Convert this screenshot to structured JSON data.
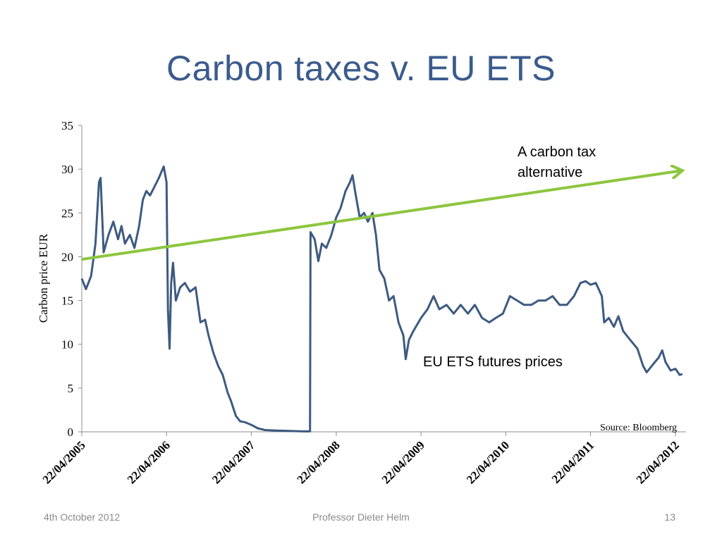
{
  "slide": {
    "title": "Carbon taxes v. EU ETS",
    "footer_left": "4th October 2012",
    "footer_center": "Professor Dieter Helm",
    "footer_right": "13"
  },
  "colors": {
    "title": "#3b5b8c",
    "series_ets": "#3d5a80",
    "series_tax": "#8cc63f",
    "axis": "#8c8c8c"
  },
  "chart_data": {
    "type": "line",
    "title": "",
    "xlabel": "",
    "ylabel": "Carbon price EUR",
    "ylim": [
      0,
      35
    ],
    "yticks": [
      0,
      5,
      10,
      15,
      20,
      25,
      30,
      35
    ],
    "xlim": [
      "2005-04-22",
      "2012-05-22"
    ],
    "xticks": [
      "2005-04-22",
      "2006-04-22",
      "2007-04-22",
      "2008-04-22",
      "2009-04-22",
      "2010-04-22",
      "2011-04-22",
      "2012-04-22"
    ],
    "xtick_labels": [
      "22/04/2005",
      "22/04/2006",
      "22/04/2007",
      "22/04/2008",
      "22/04/2009",
      "22/04/2010",
      "22/04/2011",
      "22/04/2012"
    ],
    "source": "Source: Bloomberg",
    "grid": false,
    "series": [
      {
        "name": "EU ETS futures prices",
        "label": "EU ETS futures prices",
        "color": "#3d5a80",
        "points": [
          [
            "2005-04-22",
            17.5
          ],
          [
            "2005-05-10",
            16.3
          ],
          [
            "2005-06-01",
            17.8
          ],
          [
            "2005-06-20",
            21.5
          ],
          [
            "2005-07-05",
            28.5
          ],
          [
            "2005-07-12",
            29.0
          ],
          [
            "2005-07-25",
            20.5
          ],
          [
            "2005-08-15",
            22.5
          ],
          [
            "2005-09-05",
            24.0
          ],
          [
            "2005-09-25",
            22.0
          ],
          [
            "2005-10-10",
            23.5
          ],
          [
            "2005-10-25",
            21.5
          ],
          [
            "2005-11-15",
            22.5
          ],
          [
            "2005-12-05",
            21.0
          ],
          [
            "2005-12-25",
            23.5
          ],
          [
            "2006-01-10",
            26.5
          ],
          [
            "2006-01-25",
            27.5
          ],
          [
            "2006-02-10",
            27.0
          ],
          [
            "2006-03-01",
            28.0
          ],
          [
            "2006-03-20",
            29.0
          ],
          [
            "2006-04-10",
            30.3
          ],
          [
            "2006-04-22",
            28.5
          ],
          [
            "2006-04-28",
            14.0
          ],
          [
            "2006-05-05",
            9.5
          ],
          [
            "2006-05-12",
            17.0
          ],
          [
            "2006-05-20",
            19.3
          ],
          [
            "2006-06-01",
            15.0
          ],
          [
            "2006-06-20",
            16.5
          ],
          [
            "2006-07-10",
            17.0
          ],
          [
            "2006-08-01",
            16.0
          ],
          [
            "2006-08-25",
            16.5
          ],
          [
            "2006-09-15",
            12.5
          ],
          [
            "2006-10-05",
            12.8
          ],
          [
            "2006-10-20",
            11.0
          ],
          [
            "2006-11-10",
            9.0
          ],
          [
            "2006-12-01",
            7.5
          ],
          [
            "2006-12-20",
            6.5
          ],
          [
            "2007-01-10",
            4.5
          ],
          [
            "2007-01-25",
            3.5
          ],
          [
            "2007-02-15",
            1.8
          ],
          [
            "2007-03-05",
            1.2
          ],
          [
            "2007-03-25",
            1.1
          ],
          [
            "2007-04-22",
            0.8
          ],
          [
            "2007-05-20",
            0.4
          ],
          [
            "2007-06-20",
            0.2
          ],
          [
            "2007-08-01",
            0.15
          ],
          [
            "2007-10-01",
            0.1
          ],
          [
            "2007-12-01",
            0.05
          ],
          [
            "2007-12-31",
            0.05
          ],
          [
            "2008-01-02",
            22.8
          ],
          [
            "2008-01-20",
            22.0
          ],
          [
            "2008-02-05",
            19.5
          ],
          [
            "2008-02-20",
            21.5
          ],
          [
            "2008-03-10",
            21.0
          ],
          [
            "2008-04-01",
            22.5
          ],
          [
            "2008-04-22",
            24.5
          ],
          [
            "2008-05-10",
            25.5
          ],
          [
            "2008-06-01",
            27.5
          ],
          [
            "2008-06-20",
            28.5
          ],
          [
            "2008-07-01",
            29.3
          ],
          [
            "2008-07-15",
            27.0
          ],
          [
            "2008-08-01",
            24.5
          ],
          [
            "2008-08-20",
            25.0
          ],
          [
            "2008-09-05",
            24.0
          ],
          [
            "2008-09-25",
            25.0
          ],
          [
            "2008-10-10",
            22.5
          ],
          [
            "2008-10-25",
            18.5
          ],
          [
            "2008-11-15",
            17.5
          ],
          [
            "2008-12-05",
            15.0
          ],
          [
            "2008-12-25",
            15.5
          ],
          [
            "2009-01-15",
            12.5
          ],
          [
            "2009-02-05",
            11.0
          ],
          [
            "2009-02-15",
            8.3
          ],
          [
            "2009-03-01",
            10.5
          ],
          [
            "2009-03-20",
            11.5
          ],
          [
            "2009-04-22",
            13.0
          ],
          [
            "2009-05-20",
            14.0
          ],
          [
            "2009-06-15",
            15.5
          ],
          [
            "2009-07-10",
            14.0
          ],
          [
            "2009-08-10",
            14.5
          ],
          [
            "2009-09-10",
            13.5
          ],
          [
            "2009-10-10",
            14.5
          ],
          [
            "2009-11-10",
            13.5
          ],
          [
            "2009-12-10",
            14.5
          ],
          [
            "2010-01-10",
            13.0
          ],
          [
            "2010-02-10",
            12.5
          ],
          [
            "2010-03-10",
            13.0
          ],
          [
            "2010-04-10",
            13.5
          ],
          [
            "2010-05-10",
            15.5
          ],
          [
            "2010-06-10",
            15.0
          ],
          [
            "2010-07-10",
            14.5
          ],
          [
            "2010-08-10",
            14.5
          ],
          [
            "2010-09-10",
            15.0
          ],
          [
            "2010-10-10",
            15.0
          ],
          [
            "2010-11-10",
            15.5
          ],
          [
            "2010-12-10",
            14.5
          ],
          [
            "2011-01-10",
            14.5
          ],
          [
            "2011-02-10",
            15.5
          ],
          [
            "2011-03-10",
            17.0
          ],
          [
            "2011-04-01",
            17.2
          ],
          [
            "2011-04-22",
            16.8
          ],
          [
            "2011-05-15",
            17.0
          ],
          [
            "2011-06-10",
            15.5
          ],
          [
            "2011-06-20",
            12.5
          ],
          [
            "2011-07-10",
            13.0
          ],
          [
            "2011-08-01",
            12.0
          ],
          [
            "2011-08-20",
            13.2
          ],
          [
            "2011-09-10",
            11.5
          ],
          [
            "2011-10-10",
            10.5
          ],
          [
            "2011-11-10",
            9.5
          ],
          [
            "2011-12-05",
            7.5
          ],
          [
            "2011-12-20",
            6.8
          ],
          [
            "2012-01-10",
            7.5
          ],
          [
            "2012-02-10",
            8.5
          ],
          [
            "2012-02-25",
            9.3
          ],
          [
            "2012-03-10",
            8.0
          ],
          [
            "2012-04-01",
            7.0
          ],
          [
            "2012-04-22",
            7.2
          ],
          [
            "2012-05-10",
            6.5
          ],
          [
            "2012-05-22",
            6.6
          ]
        ]
      },
      {
        "name": "A carbon tax alternative",
        "label_lines": [
          "A carbon tax",
          "alternative"
        ],
        "color": "#8cc63f",
        "arrow": true,
        "points": [
          [
            "2005-04-22",
            19.7
          ],
          [
            "2012-05-22",
            29.8
          ]
        ]
      }
    ]
  }
}
